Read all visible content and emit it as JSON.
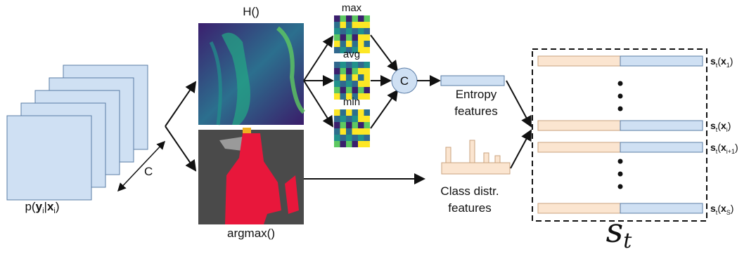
{
  "input_label": [
    "p(",
    "y",
    "i",
    "|",
    "x",
    "i",
    ")"
  ],
  "channel_label": "C",
  "entropy_map": {
    "title": "H()"
  },
  "argmax_map": {
    "title": "argmax()"
  },
  "pooling": [
    "max",
    "avg",
    "min"
  ],
  "concat": "C",
  "entropy_features": [
    "Entropy",
    "features"
  ],
  "class_features": [
    "Class distr.",
    "features"
  ],
  "output_rows": [
    [
      "s",
      "t",
      "(",
      "x",
      "1",
      ")"
    ],
    [
      "s",
      "t",
      "(",
      "x",
      "i",
      ")"
    ],
    [
      "s",
      "t",
      "(",
      "x",
      "i+1",
      ")"
    ],
    [
      "s",
      "t",
      "(",
      "x",
      "S",
      ")"
    ]
  ],
  "output_symbol": [
    "s",
    "t"
  ]
}
